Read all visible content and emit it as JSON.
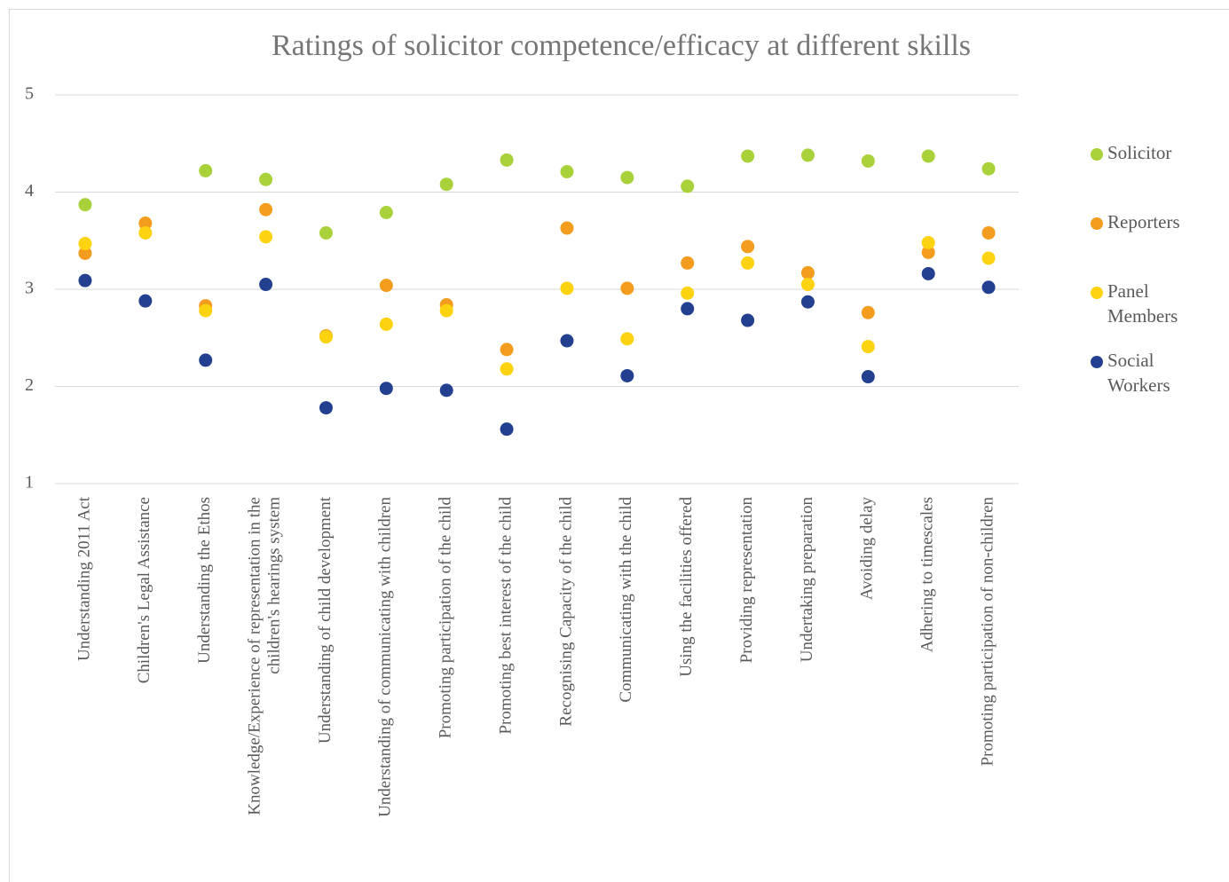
{
  "chart_data": {
    "type": "dot",
    "title": "Ratings of solicitor competence/efficacy at different skills",
    "categories": [
      "Understanding 2011 Act",
      "Children's Legal Assistance",
      "Understanding the Ethos",
      "Knowledge/Experience of representation in the children's hearings system",
      "Understanding of child development",
      "Understanding of communicating with children",
      "Promoting participation of the child",
      "Promoting best interest of the child",
      "Recognising Capacity of the child",
      "Communicating with the child",
      "Using the facilities offered",
      "Providing representation",
      "Undertaking preparation",
      "Avoiding delay",
      "Adhering to timescales",
      "Promoting participation of non-children"
    ],
    "series": [
      {
        "name": "Solicitor",
        "color": "#a9d13a",
        "values": [
          3.87,
          null,
          4.22,
          4.13,
          3.58,
          3.79,
          4.08,
          4.33,
          4.21,
          4.15,
          4.06,
          4.37,
          4.38,
          4.32,
          4.37,
          4.24
        ]
      },
      {
        "name": "Reporters",
        "color": "#f39c1e",
        "values": [
          3.37,
          3.68,
          2.83,
          3.82,
          2.52,
          3.04,
          2.84,
          2.38,
          3.63,
          3.01,
          3.27,
          3.44,
          3.17,
          2.76,
          3.38,
          3.58
        ]
      },
      {
        "name": "Panel Members",
        "color": "#fdd20e",
        "values": [
          3.47,
          3.58,
          2.78,
          3.54,
          2.51,
          2.64,
          2.78,
          2.18,
          3.01,
          2.49,
          2.96,
          3.27,
          3.05,
          2.41,
          3.48,
          3.32
        ]
      },
      {
        "name": "Social Workers",
        "color": "#22408f",
        "values": [
          3.09,
          2.88,
          2.27,
          3.05,
          1.78,
          1.98,
          1.96,
          1.56,
          2.47,
          2.11,
          2.8,
          2.68,
          2.87,
          2.1,
          3.16,
          3.02
        ]
      }
    ],
    "ylim": [
      1,
      5
    ],
    "yticks": [
      1,
      2,
      3,
      4,
      5
    ],
    "grid": true,
    "legend": "right"
  }
}
